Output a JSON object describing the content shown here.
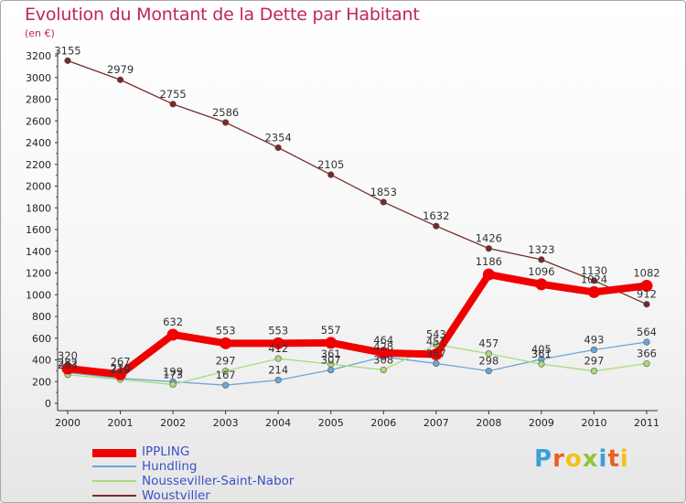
{
  "title": "Evolution du Montant de la Dette par Habitant",
  "unit_label": "(en €)",
  "logo_text": "Proxiti",
  "logo_colors": [
    "#3aa0d8",
    "#e8631f",
    "#f2c318",
    "#8fc43d",
    "#3aa0d8",
    "#e8631f",
    "#f2c318"
  ],
  "chart_data": {
    "type": "line",
    "x": [
      "2000",
      "2001",
      "2002",
      "2003",
      "2004",
      "2005",
      "2006",
      "2007",
      "2008",
      "2009",
      "2010",
      "2011"
    ],
    "ylim": [
      0,
      3200
    ],
    "yticks": [
      0,
      200,
      400,
      600,
      800,
      1000,
      1200,
      1400,
      1600,
      1800,
      2000,
      2200,
      2400,
      2600,
      2800,
      3000,
      3200
    ],
    "grid": false,
    "legend_position": "bottom-left",
    "series": [
      {
        "name": "IPPLING",
        "color": "#f00000",
        "bold": true,
        "values": [
          320,
          267,
          632,
          553,
          553,
          557,
          464,
          451,
          1186,
          1096,
          1024,
          1082
        ],
        "labels": [
          "320",
          "267",
          "632",
          "553",
          "553",
          "557",
          "464",
          "451",
          "1186",
          "1096",
          "1024",
          "1082"
        ]
      },
      {
        "name": "Hundling",
        "color": "#6aa6d8",
        "bold": false,
        "values": [
          282,
          230,
          199,
          167,
          214,
          307,
          428,
          367,
          298,
          405,
          493,
          564
        ],
        "labels": [
          "282",
          "230",
          "199",
          "167",
          "214",
          "307",
          "428",
          "367",
          "298",
          "405",
          "493",
          "564"
        ]
      },
      {
        "name": "Nousseviller-Saint-Nabor",
        "color": "#a8dc7a",
        "bold": false,
        "values": [
          263,
          219,
          173,
          297,
          412,
          361,
          308,
          543,
          457,
          361,
          297,
          366
        ],
        "labels": [
          "263",
          "219",
          "173",
          "297",
          "412",
          "361",
          "308",
          "543",
          "457",
          "361",
          "297",
          "366"
        ]
      },
      {
        "name": "Woustviller",
        "color": "#7a2828",
        "bold": false,
        "values": [
          3155,
          2979,
          2755,
          2586,
          2354,
          2105,
          1853,
          1632,
          1426,
          1323,
          1130,
          912
        ],
        "labels": [
          "3155",
          "2979",
          "2755",
          "2586",
          "2354",
          "2105",
          "1853",
          "1632",
          "1426",
          "1323",
          "1130",
          "912"
        ]
      }
    ]
  }
}
